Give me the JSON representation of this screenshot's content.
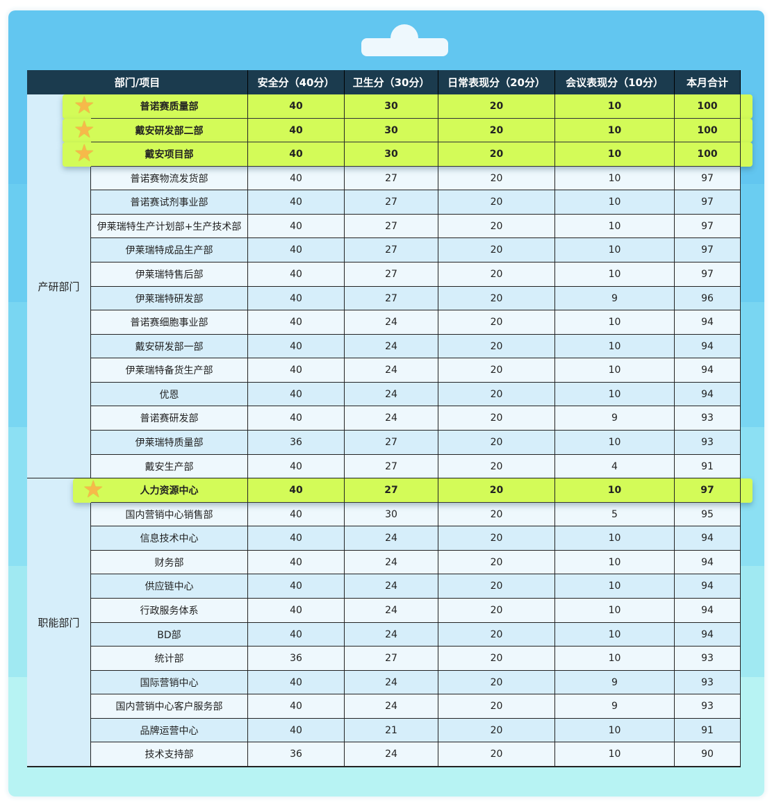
{
  "header": {
    "columns": [
      "部门/项目",
      "安全分（40分）",
      "卫生分（30分）",
      "日常表现分（20分）",
      "会议表现分（10分）",
      "本月合计"
    ]
  },
  "colors": {
    "header_bg": "#1b3b4e",
    "highlight": "#d3fb58",
    "row_a": "#d6eefa",
    "row_b": "#eef8fd"
  },
  "groups": [
    {
      "label": "产研部门",
      "rows": [
        {
          "name": "普诺赛质量部",
          "v": [
            "40",
            "30",
            "20",
            "10",
            "100"
          ],
          "star": true
        },
        {
          "name": "戴安研发部二部",
          "v": [
            "40",
            "30",
            "20",
            "10",
            "100"
          ],
          "star": true
        },
        {
          "name": "戴安项目部",
          "v": [
            "40",
            "30",
            "20",
            "10",
            "100"
          ],
          "star": true
        },
        {
          "name": "普诺赛物流发货部",
          "v": [
            "40",
            "27",
            "20",
            "10",
            "97"
          ]
        },
        {
          "name": "普诺赛试剂事业部",
          "v": [
            "40",
            "27",
            "20",
            "10",
            "97"
          ]
        },
        {
          "name": "伊莱瑞特生产计划部+生产技术部",
          "v": [
            "40",
            "27",
            "20",
            "10",
            "97"
          ]
        },
        {
          "name": "伊莱瑞特成品生产部",
          "v": [
            "40",
            "27",
            "20",
            "10",
            "97"
          ]
        },
        {
          "name": "伊莱瑞特售后部",
          "v": [
            "40",
            "27",
            "20",
            "10",
            "97"
          ]
        },
        {
          "name": "伊莱瑞特研发部",
          "v": [
            "40",
            "27",
            "20",
            "9",
            "96"
          ]
        },
        {
          "name": "普诺赛细胞事业部",
          "v": [
            "40",
            "24",
            "20",
            "10",
            "94"
          ]
        },
        {
          "name": "戴安研发部一部",
          "v": [
            "40",
            "24",
            "20",
            "10",
            "94"
          ]
        },
        {
          "name": "伊莱瑞特备货生产部",
          "v": [
            "40",
            "24",
            "20",
            "10",
            "94"
          ]
        },
        {
          "name": "优恩",
          "v": [
            "40",
            "24",
            "20",
            "10",
            "94"
          ]
        },
        {
          "name": "普诺赛研发部",
          "v": [
            "40",
            "24",
            "20",
            "9",
            "93"
          ]
        },
        {
          "name": "伊莱瑞特质量部",
          "v": [
            "36",
            "27",
            "20",
            "10",
            "93"
          ]
        },
        {
          "name": "戴安生产部",
          "v": [
            "40",
            "27",
            "20",
            "4",
            "91"
          ]
        }
      ]
    },
    {
      "label": "职能部门",
      "rows": [
        {
          "name": "人力资源中心",
          "v": [
            "40",
            "27",
            "20",
            "10",
            "97"
          ],
          "star": true
        },
        {
          "name": "国内营销中心销售部",
          "v": [
            "40",
            "30",
            "20",
            "5",
            "95"
          ]
        },
        {
          "name": "信息技术中心",
          "v": [
            "40",
            "24",
            "20",
            "10",
            "94"
          ]
        },
        {
          "name": "财务部",
          "v": [
            "40",
            "24",
            "20",
            "10",
            "94"
          ]
        },
        {
          "name": "供应链中心",
          "v": [
            "40",
            "24",
            "20",
            "10",
            "94"
          ]
        },
        {
          "name": "行政服务体系",
          "v": [
            "40",
            "24",
            "20",
            "10",
            "94"
          ]
        },
        {
          "name": "BD部",
          "v": [
            "40",
            "24",
            "20",
            "10",
            "94"
          ]
        },
        {
          "name": "统计部",
          "v": [
            "36",
            "27",
            "20",
            "10",
            "93"
          ]
        },
        {
          "name": "国际营销中心",
          "v": [
            "40",
            "24",
            "20",
            "9",
            "93"
          ]
        },
        {
          "name": "国内营销中心客户服务部",
          "v": [
            "40",
            "24",
            "20",
            "9",
            "93"
          ]
        },
        {
          "name": "品牌运营中心",
          "v": [
            "40",
            "21",
            "20",
            "10",
            "91"
          ]
        },
        {
          "name": "技术支持部",
          "v": [
            "36",
            "24",
            "20",
            "10",
            "90"
          ]
        }
      ]
    }
  ]
}
